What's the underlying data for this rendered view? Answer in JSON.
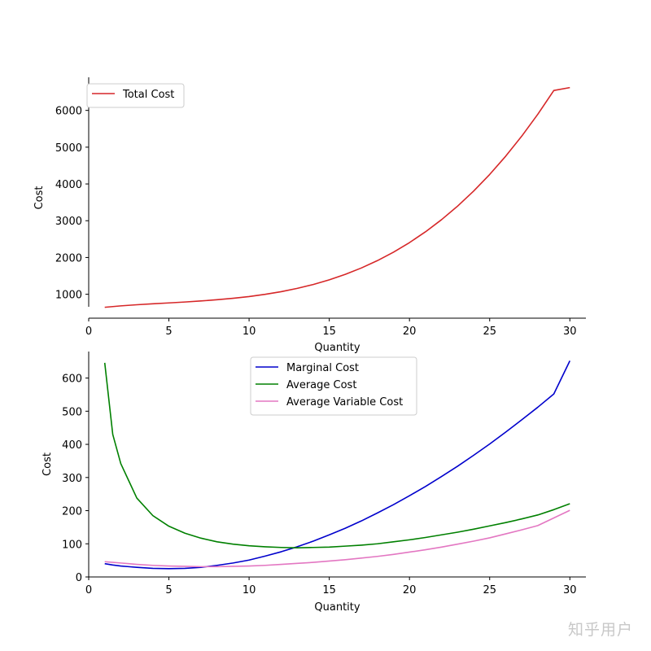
{
  "watermark": "知乎用户",
  "chart_data": [
    {
      "type": "line",
      "xlabel": "Quantity",
      "ylabel": "Cost",
      "xlim": [
        0,
        31
      ],
      "ylim": [
        350,
        6900
      ],
      "xticks": [
        0,
        5,
        10,
        15,
        20,
        25,
        30
      ],
      "yticks": [
        1000,
        2000,
        3000,
        4000,
        5000,
        6000
      ],
      "legend_loc": "upper-left",
      "x": [
        1,
        2,
        3,
        4,
        5,
        6,
        7,
        8,
        9,
        10,
        11,
        12,
        13,
        14,
        15,
        16,
        17,
        18,
        19,
        20,
        21,
        22,
        23,
        24,
        25,
        26,
        27,
        28,
        29,
        30
      ],
      "series": [
        {
          "name": "Total Cost",
          "color": "#d62728",
          "values": [
            646,
            685,
            715,
            741,
            765,
            790,
            818,
            851,
            890,
            938,
            998,
            1071,
            1160,
            1266,
            1393,
            1542,
            1715,
            1915,
            2144,
            2405,
            2699,
            3029,
            3397,
            3806,
            4258,
            4755,
            5300,
            5894,
            6541,
            6620
          ]
        }
      ]
    },
    {
      "type": "line",
      "xlabel": "Quantity",
      "ylabel": "Cost",
      "xlim": [
        0,
        31
      ],
      "ylim": [
        0,
        680
      ],
      "xticks": [
        0,
        5,
        10,
        15,
        20,
        25,
        30
      ],
      "yticks": [
        0,
        100,
        200,
        300,
        400,
        500,
        600
      ],
      "legend_loc": "upper-center",
      "x": [
        1,
        1.5,
        2,
        2.5,
        3,
        4,
        5,
        6,
        7,
        8,
        9,
        10,
        11,
        12,
        13,
        14,
        15,
        16,
        17,
        18,
        19,
        20,
        21,
        22,
        23,
        24,
        25,
        26,
        27,
        28,
        29,
        30
      ],
      "series": [
        {
          "name": "Marginal Cost",
          "color": "#0000cc",
          "values": [
            40,
            36,
            33,
            31,
            29,
            26,
            25,
            26,
            29,
            35,
            42,
            51,
            63,
            76,
            91,
            108,
            127,
            147,
            169,
            193,
            218,
            245,
            273,
            303,
            334,
            367,
            401,
            437,
            474,
            512,
            552,
            652
          ]
        },
        {
          "name": "Average Cost",
          "color": "#008000",
          "values": [
            646,
            430,
            342,
            290,
            238,
            185,
            153,
            132,
            117,
            106,
            99,
            94,
            91,
            89,
            88,
            89,
            90,
            93,
            96,
            100,
            106,
            112,
            119,
            127,
            135,
            144,
            154,
            164,
            175,
            187,
            203,
            221
          ]
        },
        {
          "name": "Average Variable Cost",
          "color": "#e377c2",
          "values": [
            46,
            44,
            42,
            40,
            38,
            35,
            33,
            32,
            31,
            31,
            32,
            33,
            35,
            38,
            41,
            44,
            48,
            52,
            57,
            62,
            68,
            75,
            82,
            90,
            99,
            108,
            118,
            130,
            142,
            155,
            178,
            201
          ]
        }
      ]
    }
  ]
}
